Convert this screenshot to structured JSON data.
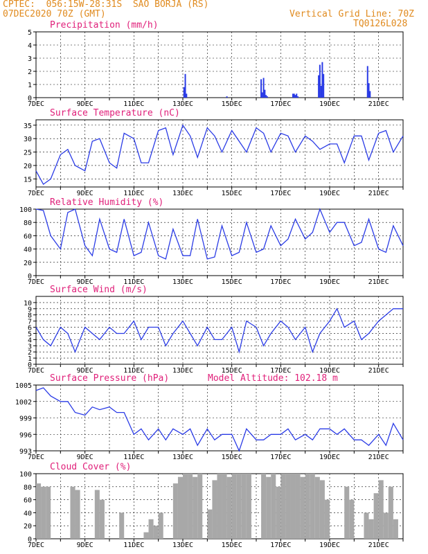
{
  "header": {
    "line1": "CPTEC:  056:15W-28:31S  SAO BORJA (RS)",
    "line2": "07DEC2020 70Z (GMT)",
    "grid_line": "Vertical Grid Line: 70Z",
    "run_id": "TQ0126L028"
  },
  "colors": {
    "header": "#e08a1e",
    "title": "#e0207a",
    "line": "#2a3be6",
    "bar": "#2a3be6",
    "cloud": "#a8a8a8"
  },
  "chart_data": [
    {
      "id": "precip",
      "type": "bar",
      "title": "Precipitation (mm/h)",
      "ylim": [
        0,
        5
      ],
      "yticks": [
        "0",
        "1",
        "2",
        "3",
        "4",
        "5"
      ],
      "xticks": [
        "7DEC",
        "9DEC",
        "11DEC",
        "13DEC",
        "15DEC",
        "17DEC",
        "19DEC",
        "21DEC"
      ],
      "x_days": [
        13.05,
        13.1,
        13.15,
        14.8,
        16.2,
        16.25,
        16.3,
        16.35,
        16.4,
        16.45,
        17.5,
        17.55,
        17.6,
        17.65,
        17.7,
        18.55,
        18.6,
        18.65,
        18.7,
        18.75,
        20.55,
        20.6,
        20.65
      ],
      "values": [
        0.8,
        1.8,
        0.3,
        0.1,
        1.4,
        0.4,
        1.5,
        0.6,
        0.2,
        0.1,
        0.3,
        0.3,
        0.2,
        0.3,
        0.1,
        1.7,
        2.5,
        0.9,
        2.7,
        1.8,
        2.4,
        1.1,
        0.5
      ]
    },
    {
      "id": "temp",
      "type": "line",
      "title": "Surface Temperature (nC)",
      "ylim": [
        12,
        37
      ],
      "yticks": [
        "15",
        "20",
        "25",
        "30",
        "35"
      ],
      "xticks": [
        "7DEC",
        "9DEC",
        "11DEC",
        "13DEC",
        "15DEC",
        "17DEC",
        "19DEC",
        "21DEC"
      ],
      "x_days": [
        7.0,
        7.3,
        7.6,
        8.0,
        8.3,
        8.6,
        9.0,
        9.3,
        9.6,
        10.0,
        10.3,
        10.6,
        11.0,
        11.3,
        11.6,
        12.0,
        12.3,
        12.6,
        13.0,
        13.3,
        13.6,
        14.0,
        14.3,
        14.6,
        15.0,
        15.3,
        15.6,
        16.0,
        16.3,
        16.6,
        17.0,
        17.3,
        17.6,
        18.0,
        18.3,
        18.6,
        19.0,
        19.3,
        19.6,
        20.0,
        20.3,
        20.6,
        21.0,
        21.3,
        21.6,
        22.0
      ],
      "values": [
        18,
        13,
        15,
        24,
        26,
        20,
        18,
        29,
        30,
        21,
        19,
        32,
        30,
        21,
        21,
        33,
        34,
        24,
        35,
        31,
        23,
        34,
        31,
        25,
        33,
        29,
        25,
        34,
        32,
        25,
        32,
        31,
        25,
        31,
        29,
        26,
        28,
        28,
        21,
        31,
        31,
        22,
        32,
        33,
        25,
        31
      ]
    },
    {
      "id": "rh",
      "type": "line",
      "title": "Relative Humidity (%)",
      "ylim": [
        0,
        100
      ],
      "yticks": [
        "0",
        "20",
        "40",
        "60",
        "80",
        "100"
      ],
      "xticks": [
        "7DEC",
        "9DEC",
        "11DEC",
        "13DEC",
        "15DEC",
        "17DEC",
        "19DEC",
        "21DEC"
      ],
      "x_days": [
        7.0,
        7.3,
        7.6,
        8.0,
        8.3,
        8.6,
        9.0,
        9.3,
        9.6,
        10.0,
        10.3,
        10.6,
        11.0,
        11.3,
        11.6,
        12.0,
        12.3,
        12.6,
        13.0,
        13.3,
        13.6,
        14.0,
        14.3,
        14.6,
        15.0,
        15.3,
        15.6,
        16.0,
        16.3,
        16.6,
        17.0,
        17.3,
        17.6,
        18.0,
        18.3,
        18.6,
        19.0,
        19.3,
        19.6,
        20.0,
        20.3,
        20.6,
        21.0,
        21.3,
        21.6,
        22.0
      ],
      "values": [
        100,
        98,
        60,
        40,
        95,
        100,
        45,
        30,
        85,
        40,
        35,
        85,
        30,
        35,
        80,
        30,
        25,
        70,
        30,
        30,
        85,
        25,
        28,
        75,
        30,
        35,
        80,
        35,
        40,
        75,
        45,
        55,
        85,
        55,
        65,
        100,
        65,
        80,
        80,
        45,
        50,
        85,
        40,
        35,
        75,
        45
      ]
    },
    {
      "id": "wind",
      "type": "line",
      "title": "Surface Wind (m/s)",
      "ylim": [
        0,
        11
      ],
      "yticks": [
        "0",
        "1",
        "2",
        "3",
        "4",
        "5",
        "6",
        "7",
        "8",
        "9",
        "10"
      ],
      "xticks": [
        "7DEC",
        "9DEC",
        "11DEC",
        "13DEC",
        "15DEC",
        "17DEC",
        "19DEC",
        "21DEC"
      ],
      "x_days": [
        7.0,
        7.3,
        7.6,
        8.0,
        8.3,
        8.6,
        9.0,
        9.3,
        9.6,
        10.0,
        10.3,
        10.6,
        11.0,
        11.3,
        11.6,
        12.0,
        12.3,
        12.6,
        13.0,
        13.3,
        13.6,
        14.0,
        14.3,
        14.6,
        15.0,
        15.3,
        15.6,
        16.0,
        16.3,
        16.6,
        17.0,
        17.3,
        17.6,
        18.0,
        18.3,
        18.6,
        19.0,
        19.3,
        19.6,
        20.0,
        20.3,
        20.6,
        21.0,
        21.3,
        21.6,
        22.0
      ],
      "values": [
        6,
        4,
        3,
        6,
        5,
        2,
        6,
        5,
        4,
        6,
        5,
        5,
        7,
        4,
        6,
        6,
        3,
        5,
        7,
        5,
        3,
        6,
        4,
        4,
        6,
        2,
        7,
        6,
        3,
        5,
        7,
        6,
        4,
        6,
        2,
        5,
        7,
        9,
        6,
        7,
        4,
        5,
        7,
        8,
        9,
        9
      ]
    },
    {
      "id": "pres",
      "type": "line",
      "title": "Surface Pressure (hPa)",
      "annotation": "Model Altitude: 102.18 m",
      "ylim": [
        993,
        1005
      ],
      "yticks": [
        "993",
        "996",
        "999",
        "1002",
        "1005"
      ],
      "xticks": [
        "7DEC",
        "9DEC",
        "11DEC",
        "13DEC",
        "15DEC",
        "17DEC",
        "19DEC",
        "21DEC"
      ],
      "x_days": [
        7.0,
        7.3,
        7.6,
        8.0,
        8.3,
        8.6,
        9.0,
        9.3,
        9.6,
        10.0,
        10.3,
        10.6,
        11.0,
        11.3,
        11.6,
        12.0,
        12.3,
        12.6,
        13.0,
        13.3,
        13.6,
        14.0,
        14.3,
        14.6,
        15.0,
        15.3,
        15.6,
        16.0,
        16.3,
        16.6,
        17.0,
        17.3,
        17.6,
        18.0,
        18.3,
        18.6,
        19.0,
        19.3,
        19.6,
        20.0,
        20.3,
        20.6,
        21.0,
        21.3,
        21.6,
        22.0
      ],
      "values": [
        1004,
        1004.5,
        1003,
        1002,
        1002,
        1000,
        999.5,
        1001,
        1000.5,
        1001,
        1000,
        1000,
        996,
        997,
        995,
        997,
        995,
        997,
        996,
        997,
        994,
        997,
        995,
        996,
        996,
        993,
        997,
        995,
        995,
        996,
        996,
        997,
        995,
        996,
        995,
        997,
        997,
        996,
        997,
        995,
        995,
        994,
        996,
        994,
        998,
        995
      ]
    },
    {
      "id": "cloud",
      "type": "bar",
      "title": "Cloud Cover (%)",
      "ylim": [
        0,
        100
      ],
      "yticks": [
        "0",
        "20",
        "40",
        "60",
        "80",
        "100"
      ],
      "xticks": [
        "7DEC",
        "9DEC",
        "11DEC",
        "13DEC",
        "15DEC",
        "17DEC",
        "19DEC",
        "21DEC"
      ],
      "x_days": [
        7.0,
        7.2,
        7.4,
        7.6,
        7.8,
        8.0,
        8.2,
        8.4,
        8.6,
        8.8,
        9.0,
        9.2,
        9.4,
        9.6,
        9.8,
        10.0,
        10.2,
        10.4,
        10.6,
        10.8,
        11.0,
        11.2,
        11.4,
        11.6,
        11.8,
        12.0,
        12.2,
        12.4,
        12.6,
        12.8,
        13.0,
        13.2,
        13.4,
        13.6,
        13.8,
        14.0,
        14.2,
        14.4,
        14.6,
        14.8,
        15.0,
        15.2,
        15.4,
        15.6,
        15.8,
        16.0,
        16.2,
        16.4,
        16.6,
        16.8,
        17.0,
        17.2,
        17.4,
        17.6,
        17.8,
        18.0,
        18.2,
        18.4,
        18.6,
        18.8,
        19.0,
        19.2,
        19.4,
        19.6,
        19.8,
        20.0,
        20.2,
        20.4,
        20.6,
        20.8,
        21.0,
        21.2,
        21.4,
        21.6,
        21.8
      ],
      "values": [
        85,
        80,
        80,
        0,
        0,
        0,
        0,
        80,
        75,
        0,
        0,
        0,
        75,
        60,
        0,
        0,
        0,
        40,
        0,
        0,
        0,
        0,
        10,
        30,
        20,
        40,
        0,
        0,
        85,
        95,
        100,
        100,
        95,
        100,
        0,
        45,
        90,
        100,
        100,
        95,
        100,
        100,
        100,
        100,
        0,
        0,
        100,
        95,
        100,
        80,
        100,
        100,
        100,
        100,
        95,
        100,
        100,
        95,
        90,
        60,
        0,
        0,
        0,
        80,
        60,
        0,
        0,
        40,
        30,
        70,
        90,
        40,
        80,
        30,
        0
      ]
    }
  ]
}
